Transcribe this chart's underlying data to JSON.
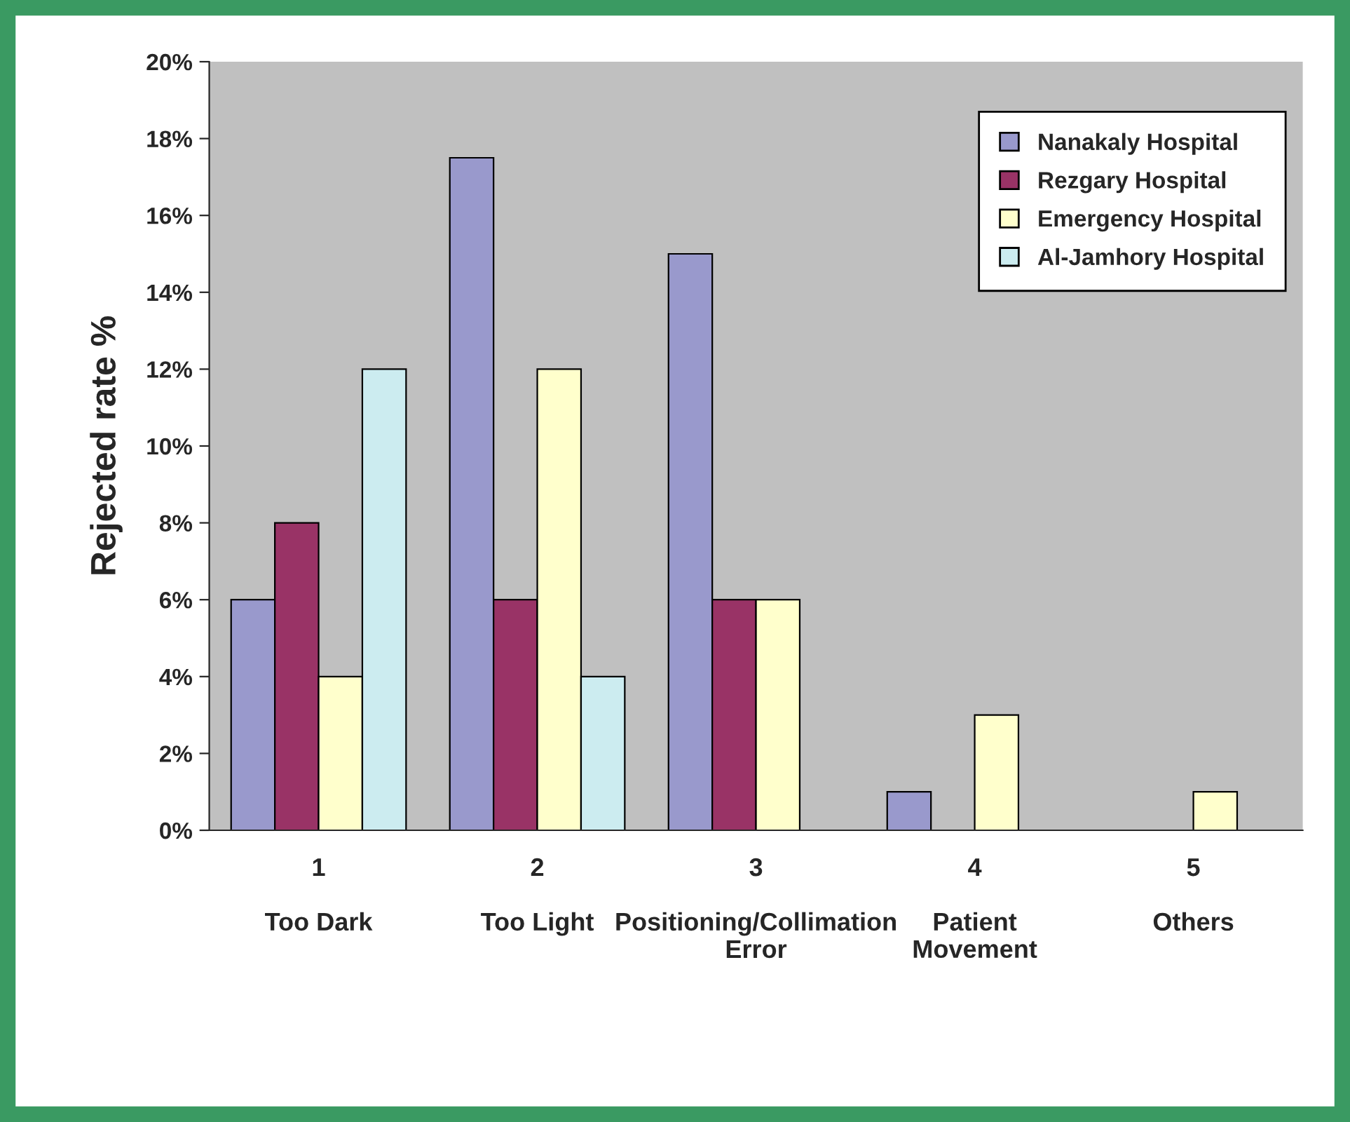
{
  "chart_data": {
    "type": "bar",
    "ylabel": "Rejected rate %",
    "categories": [
      "1\n\nToo Dark",
      "2\n\nToo Light",
      "3\n\nPositioning/Collimation\nError",
      "4\n\nPatient\nMovement",
      "5\n\nOthers"
    ],
    "series": [
      {
        "name": "Nanakaly Hospital",
        "color": "#9999cc",
        "values": [
          6,
          17.5,
          15,
          1,
          null
        ]
      },
      {
        "name": "Rezgary Hospital",
        "color": "#993366",
        "values": [
          8,
          6,
          6,
          null,
          null
        ]
      },
      {
        "name": "Emergency Hospital",
        "color": "#ffffcc",
        "values": [
          4,
          12,
          6,
          3,
          1
        ]
      },
      {
        "name": "Al-Jamhory Hospital",
        "color": "#ccecf0",
        "values": [
          12,
          4,
          null,
          null,
          null
        ]
      }
    ],
    "ylim": [
      0,
      20
    ],
    "yticks": [
      {
        "value": 0,
        "label": "0%"
      },
      {
        "value": 2,
        "label": "2%"
      },
      {
        "value": 4,
        "label": "4%"
      },
      {
        "value": 6,
        "label": "6%"
      },
      {
        "value": 8,
        "label": "8%"
      },
      {
        "value": 10,
        "label": "10%"
      },
      {
        "value": 12,
        "label": "12%"
      },
      {
        "value": 14,
        "label": "14%"
      },
      {
        "value": 16,
        "label": "16%"
      },
      {
        "value": 18,
        "label": "18%"
      },
      {
        "value": 20,
        "label": "20%"
      }
    ],
    "grid": false,
    "legend": "top right"
  }
}
